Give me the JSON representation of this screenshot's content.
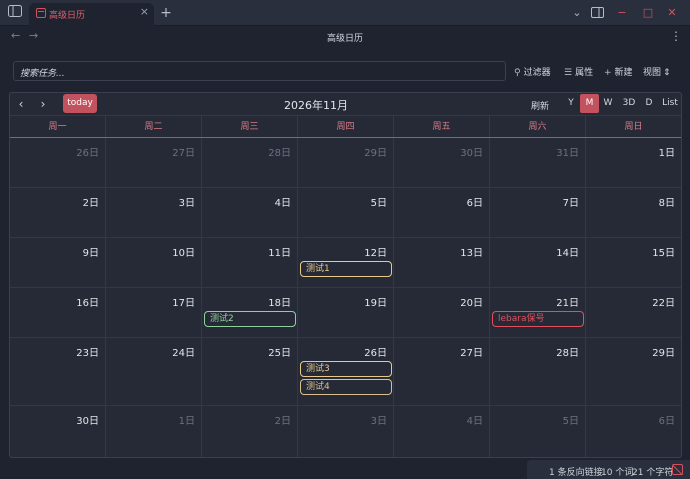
{
  "tab": {
    "label": "高级日历",
    "close": "×",
    "new": "+"
  },
  "window": {
    "dropdown": "⌄",
    "sidebar_toggle": "▣",
    "minimize": "−",
    "maximize": "□",
    "close": "✕",
    "more": "⋮"
  },
  "nav": {
    "back": "←",
    "forward": "→",
    "title": "高级日历"
  },
  "toolbar": {
    "search_placeholder": "搜索任务...",
    "filter_label": "过滤器",
    "properties_label": "属性",
    "new_label": "新建",
    "view_label": "视图"
  },
  "calendar": {
    "prev": "‹",
    "next": "›",
    "today_label": "today",
    "month_title": "2026年11月",
    "refresh_label": "刷新",
    "views": [
      "Y",
      "M",
      "W",
      "3D",
      "D",
      "List"
    ],
    "active_view": "M",
    "weekdays": [
      "周一",
      "周二",
      "周三",
      "周四",
      "周五",
      "周六",
      "周日"
    ],
    "weeks": [
      [
        {
          "d": "26日",
          "o": true
        },
        {
          "d": "27日",
          "o": true
        },
        {
          "d": "28日",
          "o": true
        },
        {
          "d": "29日",
          "o": true
        },
        {
          "d": "30日",
          "o": true
        },
        {
          "d": "31日",
          "o": true
        },
        {
          "d": "1日",
          "o": false
        }
      ],
      [
        {
          "d": "2日",
          "o": false
        },
        {
          "d": "3日",
          "o": false
        },
        {
          "d": "4日",
          "o": false
        },
        {
          "d": "5日",
          "o": false
        },
        {
          "d": "6日",
          "o": false
        },
        {
          "d": "7日",
          "o": false
        },
        {
          "d": "8日",
          "o": false
        }
      ],
      [
        {
          "d": "9日",
          "o": false
        },
        {
          "d": "10日",
          "o": false
        },
        {
          "d": "11日",
          "o": false
        },
        {
          "d": "12日",
          "o": false
        },
        {
          "d": "13日",
          "o": false
        },
        {
          "d": "14日",
          "o": false
        },
        {
          "d": "15日",
          "o": false
        }
      ],
      [
        {
          "d": "16日",
          "o": false
        },
        {
          "d": "17日",
          "o": false
        },
        {
          "d": "18日",
          "o": false
        },
        {
          "d": "19日",
          "o": false
        },
        {
          "d": "20日",
          "o": false
        },
        {
          "d": "21日",
          "o": false
        },
        {
          "d": "22日",
          "o": false
        }
      ],
      [
        {
          "d": "23日",
          "o": false
        },
        {
          "d": "24日",
          "o": false
        },
        {
          "d": "25日",
          "o": false
        },
        {
          "d": "26日",
          "o": false
        },
        {
          "d": "27日",
          "o": false
        },
        {
          "d": "28日",
          "o": false
        },
        {
          "d": "29日",
          "o": false
        }
      ],
      [
        {
          "d": "30日",
          "o": false
        },
        {
          "d": "1日",
          "o": true
        },
        {
          "d": "2日",
          "o": true
        },
        {
          "d": "3日",
          "o": true
        },
        {
          "d": "4日",
          "o": true
        },
        {
          "d": "5日",
          "o": true
        },
        {
          "d": "6日",
          "o": true
        }
      ]
    ],
    "events": [
      {
        "title": "测试1",
        "week": 2,
        "day": 3,
        "slot": 0,
        "color": "#e8c98a"
      },
      {
        "title": "测试2",
        "week": 3,
        "day": 2,
        "slot": 0,
        "color": "#8fcf9a"
      },
      {
        "title": "lebara保号",
        "week": 3,
        "day": 5,
        "slot": 0,
        "color": "#e0505c"
      },
      {
        "title": "测试3",
        "week": 4,
        "day": 3,
        "slot": 0,
        "color": "#e8c98a"
      },
      {
        "title": "测试4",
        "week": 4,
        "day": 3,
        "slot": 1,
        "color": "#d9c08e"
      }
    ]
  },
  "status": {
    "backlinks": "1 条反向链接",
    "words": "10 个词",
    "chars": "21 个字符"
  }
}
